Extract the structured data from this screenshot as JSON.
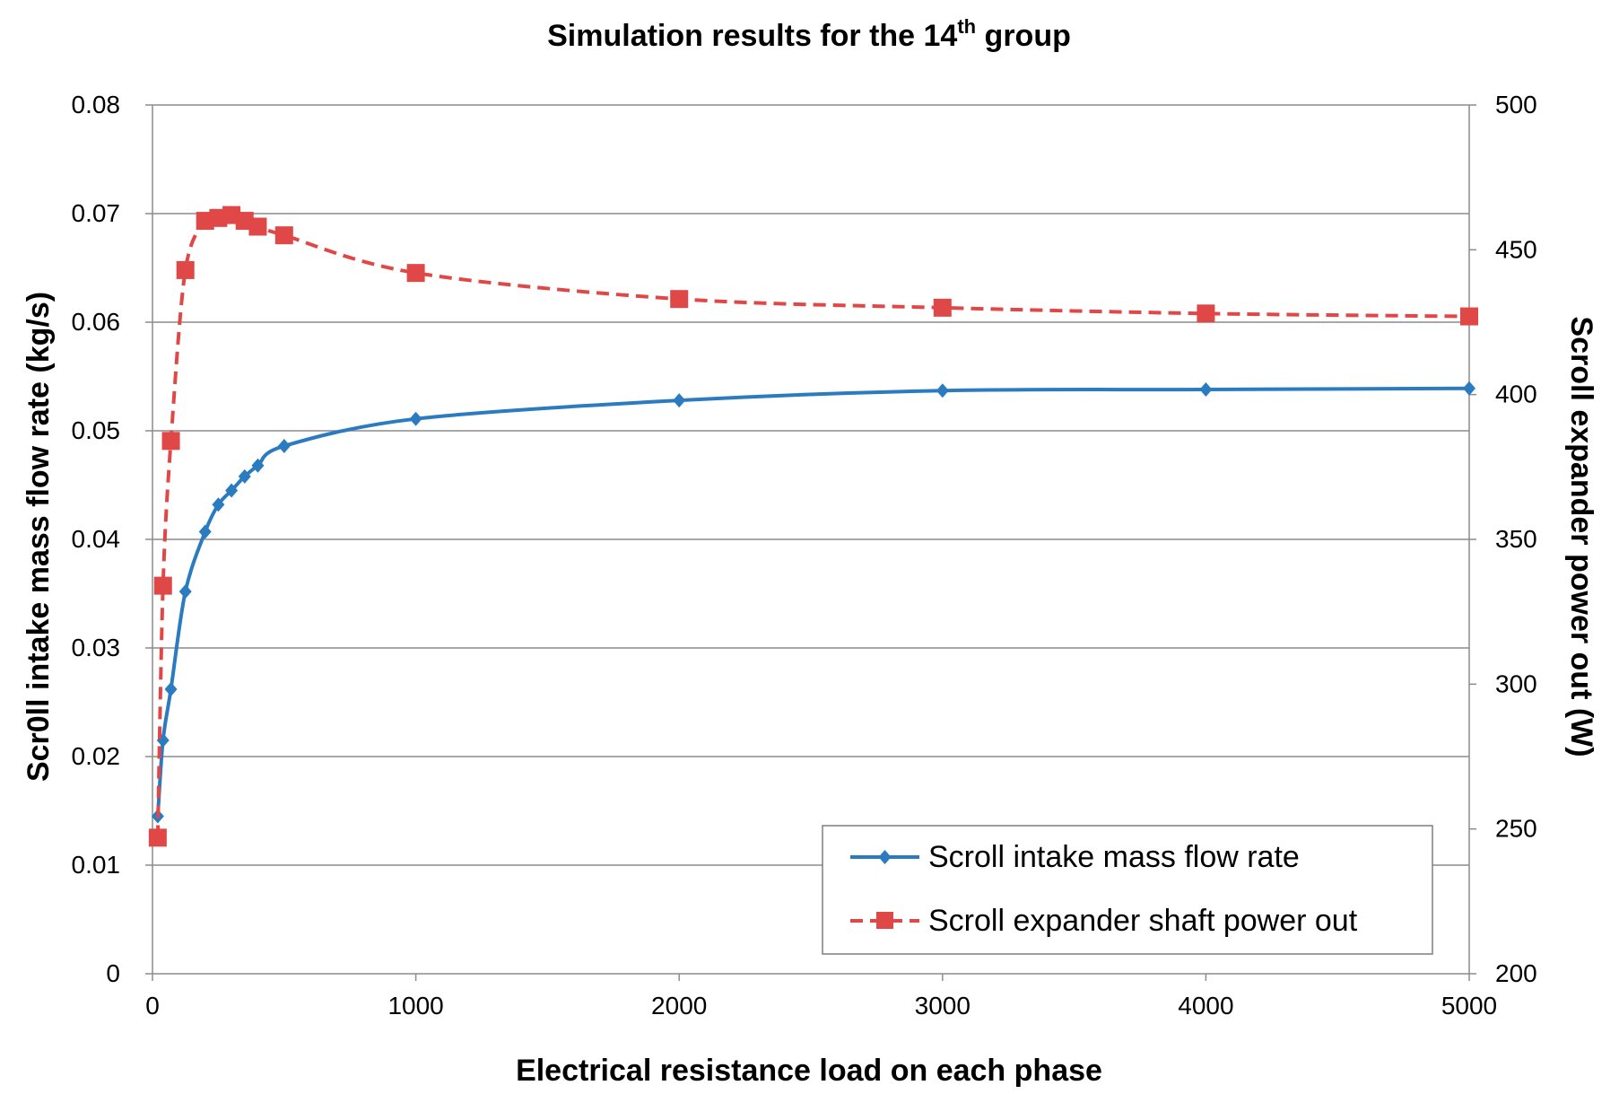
{
  "chart_data": {
    "type": "line",
    "title": "Simulation results for the 14",
    "title_superscript": "th",
    "title_suffix": " group",
    "xlabel": "Electrical resistance load on each phase",
    "ylabel_left": "Scr0ll intake mass flow rate (kg/s)",
    "ylabel_right": "Scroll expander power out (W)",
    "xlim": [
      0,
      5000
    ],
    "ylim_left": [
      0,
      0.08
    ],
    "ylim_right": [
      200,
      500
    ],
    "x_ticks": [
      "0",
      "1000",
      "2000",
      "3000",
      "4000",
      "5000"
    ],
    "y_left_ticks": [
      "0",
      "0.01",
      "0.02",
      "0.03",
      "0.04",
      "0.05",
      "0.06",
      "0.07",
      "0.08"
    ],
    "y_right_ticks": [
      "200",
      "250",
      "300",
      "350",
      "400",
      "450",
      "500"
    ],
    "grid": "horizontal",
    "legend_position": "bottom-right",
    "series": [
      {
        "name": "Scroll intake mass flow rate",
        "axis": "left",
        "color": "#2a7bc0",
        "marker": "diamond",
        "line_style": "solid",
        "x": [
          20,
          40,
          70,
          125,
          200,
          250,
          300,
          350,
          400,
          500,
          1000,
          2000,
          3000,
          4000,
          5000
        ],
        "y": [
          0.0145,
          0.0215,
          0.0262,
          0.0352,
          0.0407,
          0.0432,
          0.0445,
          0.0458,
          0.0468,
          0.0486,
          0.0511,
          0.0528,
          0.0537,
          0.0538,
          0.0539
        ]
      },
      {
        "name": "Scroll expander shaft power out",
        "axis": "right",
        "color": "#e04848",
        "marker": "square",
        "line_style": "dashed",
        "x": [
          20,
          40,
          70,
          125,
          200,
          250,
          300,
          350,
          400,
          500,
          1000,
          2000,
          3000,
          4000,
          5000
        ],
        "y": [
          247,
          334,
          384,
          443,
          460,
          461,
          462,
          460,
          458,
          455,
          442,
          433,
          430,
          428,
          427
        ]
      }
    ]
  }
}
